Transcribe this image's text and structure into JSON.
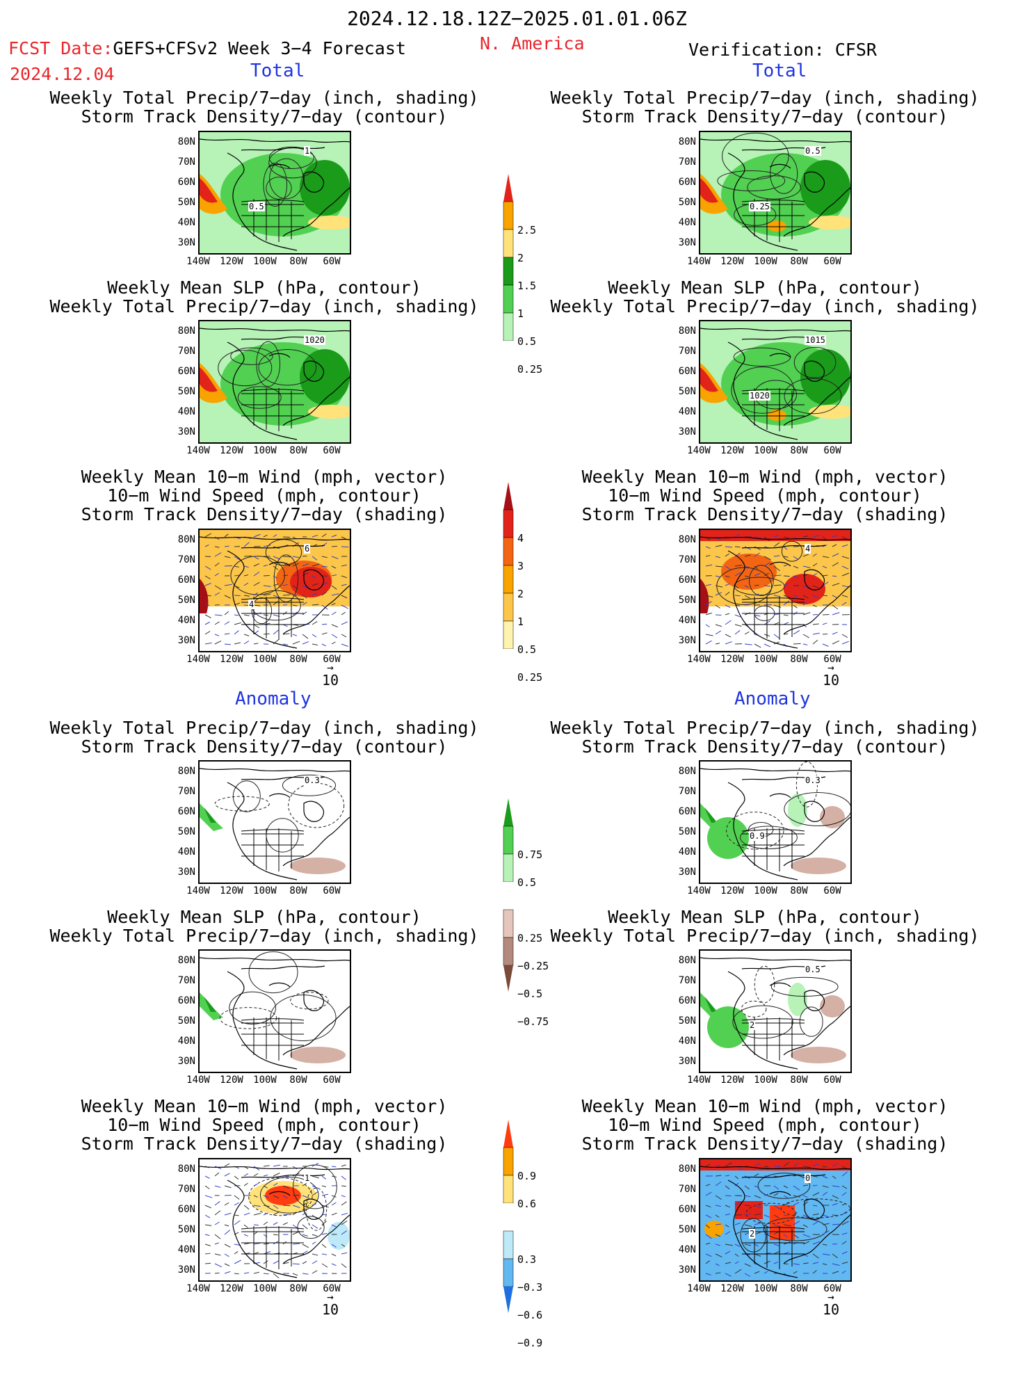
{
  "header": {
    "period": "2024.12.18.12Z−2025.01.01.06Z",
    "fcst_prefix": "FCST Date:",
    "fcst_model": "GEFS+CFSv2 Week 3−4 Forecast",
    "fcst_date": "2024.12.04",
    "region": "N. America",
    "verification": "Verification: CFSR"
  },
  "sections": {
    "total": "Total",
    "anomaly": "Anomaly"
  },
  "panels": {
    "p1": [
      "Weekly Total Precip/7−day (inch, shading)",
      "Storm Track Density/7−day (contour)"
    ],
    "p2": [
      "Weekly Mean SLP (hPa, contour)",
      "Weekly Total Precip/7−day (inch, shading)"
    ],
    "p3": [
      "Weekly Mean 10−m Wind (mph, vector)",
      "10−m Wind Speed (mph, contour)",
      "Storm Track Density/7−day (shading)"
    ]
  },
  "axes": {
    "lat_labels": [
      "80N",
      "70N",
      "60N",
      "50N",
      "40N",
      "30N"
    ],
    "lon_labels": [
      "140W",
      "120W",
      "100W",
      "80W",
      "60W"
    ]
  },
  "vector_ref": "10",
  "map_labels": {
    "f_total_std": "1",
    "f_total_std2": "0.5",
    "v_total_std": "0.5",
    "v_total_std2": "0.25",
    "f_total_slp": "1020",
    "v_total_slp": "1015",
    "v_total_slp2": "1020",
    "f_total_wind": "6",
    "f_total_wind2": "4",
    "v_total_wind": "4",
    "f_anom_std": "0.3",
    "v_anom_std": "0.3",
    "v_anom_std2": "0.9",
    "v_anom_slp": "0.5",
    "v_anom_slp2": "2",
    "f_anom_wind": "1",
    "v_anom_wind": "0",
    "v_anom_wind2": "2"
  },
  "colorbars": {
    "total_precip": {
      "labels": [
        "2.5",
        "2",
        "1.5",
        "1",
        "0.5",
        "0.25"
      ],
      "colors": [
        "#e2231a",
        "#f8a300",
        "#ffe37a",
        "#1a9b1a",
        "#52d052",
        "#b7f2b7"
      ]
    },
    "total_std": {
      "labels": [
        "4",
        "3",
        "2",
        "1",
        "0.5",
        "0.25"
      ],
      "colors": [
        "#a50f15",
        "#e2231a",
        "#f46513",
        "#f8a300",
        "#fcc64a",
        "#fff3b0"
      ]
    },
    "anom_precip": {
      "labels": [
        "0.75",
        "0.5",
        "0.25",
        "−0.25",
        "−0.5",
        "−0.75"
      ],
      "colors_pos": [
        "#1a9b1a",
        "#52d052",
        "#b7f2b7"
      ],
      "colors_neg": [
        "#e6c6bc",
        "#b58a7e",
        "#7a4a3a"
      ]
    },
    "anom_std": {
      "labels": [
        "0.9",
        "0.6",
        "0.3",
        "−0.3",
        "−0.6",
        "−0.9"
      ],
      "colors_pos": [
        "#ff3b12",
        "#f8a300",
        "#ffe37a"
      ],
      "colors_neg": [
        "#bde9f8",
        "#62b8f0",
        "#1e6fe0"
      ]
    }
  },
  "colors": {
    "precip_green": "#52d052",
    "precip_dark_green": "#1a9b1a",
    "std_orange": "#f8a300",
    "std_red": "#e2231a",
    "anom_blue": "#1e6fe0",
    "anom_brown": "#d4b0a5"
  }
}
